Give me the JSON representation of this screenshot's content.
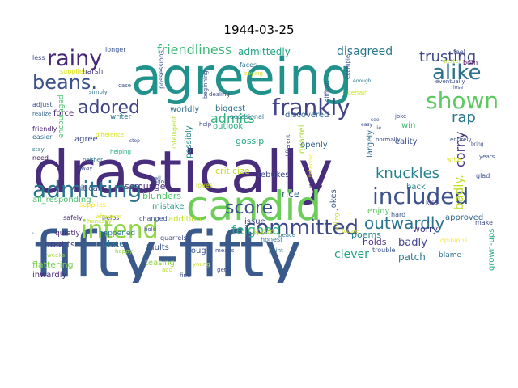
{
  "title": "1944-03-25",
  "words": [
    {
      "text": "fifty-fifty",
      "color": "#3b5a8c"
    },
    {
      "text": "drastically",
      "color": "#472d7b"
    },
    {
      "text": "agreeing",
      "color": "#21918c"
    },
    {
      "text": "candid",
      "color": "#6ccd59"
    },
    {
      "text": "included",
      "color": "#3b528b"
    },
    {
      "text": "admitting",
      "color": "#2b758e"
    },
    {
      "text": "intend",
      "color": "#90d743"
    },
    {
      "text": "committed",
      "color": "#3e4a89"
    },
    {
      "text": "frankly",
      "color": "#414487"
    },
    {
      "text": "rainy",
      "color": "#482677"
    },
    {
      "text": "shown",
      "color": "#5ec962"
    },
    {
      "text": "beans.",
      "color": "#3b528b"
    },
    {
      "text": "adored",
      "color": "#414487"
    },
    {
      "text": "alike",
      "color": "#2d708e"
    },
    {
      "text": "score",
      "color": "#3b528b"
    },
    {
      "text": "knuckles",
      "color": "#26828e"
    },
    {
      "text": "outwardly",
      "color": "#2c728e"
    },
    {
      "text": "trusting",
      "color": "#3e4989"
    },
    {
      "text": "feigned",
      "color": "#29af7f"
    },
    {
      "text": "friendliness",
      "color": "#3aba76"
    },
    {
      "text": "disagreed",
      "color": "#2a788e"
    },
    {
      "text": "admits",
      "color": "#2db27d"
    },
    {
      "text": "corny",
      "color": "#46337e"
    },
    {
      "text": "rap",
      "color": "#2a788e"
    },
    {
      "text": "badly.",
      "color": "#c0df25"
    },
    {
      "text": "admittedly",
      "color": "#20a386"
    },
    {
      "text": "gossip",
      "color": "#22a785"
    },
    {
      "text": "criticize",
      "color": "#bddf26"
    },
    {
      "text": "rebukes",
      "color": "#3e4a89"
    },
    {
      "text": "scrounge",
      "color": "#472d7b"
    },
    {
      "text": "all_responding",
      "color": "#4ac16d"
    },
    {
      "text": "approved",
      "color": "#31688e"
    },
    {
      "text": "clever",
      "color": "#20a386"
    },
    {
      "text": "poems",
      "color": "#26828e"
    },
    {
      "text": "patch",
      "color": "#2a788e"
    },
    {
      "text": "badly",
      "color": "#404588"
    },
    {
      "text": "holds",
      "color": "#46337e"
    },
    {
      "text": "worry",
      "color": "#453781"
    },
    {
      "text": "flattering",
      "color": "#7ad151"
    },
    {
      "text": "inwardly",
      "color": "#482878"
    },
    {
      "text": "doubts",
      "color": "#433e85"
    },
    {
      "text": "plate",
      "color": "#2c728e"
    },
    {
      "text": "faults",
      "color": "#3b528b"
    },
    {
      "text": "rough",
      "color": "#39568c"
    },
    {
      "text": "rice",
      "color": "#355f8d"
    },
    {
      "text": "mistake",
      "color": "#1fa088"
    },
    {
      "text": "blunders",
      "color": "#52c569"
    },
    {
      "text": "critical",
      "color": "#3e4c8a"
    },
    {
      "text": "teasing",
      "color": "#8fd744"
    },
    {
      "text": "quarrel",
      "color": "#a8db34"
    },
    {
      "text": "outlook",
      "color": "#27ad81"
    },
    {
      "text": "biggest",
      "color": "#2e6e8e"
    },
    {
      "text": "discovered",
      "color": "#33638d"
    },
    {
      "text": "openly",
      "color": "#33638d"
    },
    {
      "text": "reality",
      "color": "#3b528b"
    },
    {
      "text": "win",
      "color": "#42be71"
    },
    {
      "text": "agree",
      "color": "#3e4a89"
    },
    {
      "text": "force",
      "color": "#482374"
    },
    {
      "text": "supplies",
      "color": "#dde318"
    },
    {
      "text": "harsh",
      "color": "#453882"
    },
    {
      "text": "worldly",
      "color": "#2e6d8e"
    },
    {
      "text": "possessions",
      "color": "#3b528b"
    },
    {
      "text": "encouraged",
      "color": "#4ac16d"
    },
    {
      "text": "writer",
      "color": "#2a788e"
    },
    {
      "text": "possibly",
      "color": "#24868e"
    },
    {
      "text": "intelligent",
      "color": "#b5de2b"
    },
    {
      "text": "addition",
      "color": "#c2df23"
    },
    {
      "text": "issue",
      "color": "#3e4989"
    },
    {
      "text": "spare",
      "color": "#bddf26"
    },
    {
      "text": "enjoy",
      "color": "#5ec962"
    },
    {
      "text": "jokes",
      "color": "#38588c"
    },
    {
      "text": "back",
      "color": "#25838e"
    },
    {
      "text": "largely",
      "color": "#2e6e8e"
    },
    {
      "text": "grown-ups",
      "color": "#24aa83"
    },
    {
      "text": "supplies",
      "color": "#fde725"
    },
    {
      "text": "quietly",
      "color": "#482576"
    },
    {
      "text": "happened",
      "color": "#2a788e"
    },
    {
      "text": "quarrels",
      "color": "#3f4788"
    },
    {
      "text": "changed",
      "color": "#39558c"
    },
    {
      "text": "helps",
      "color": "#3f4889"
    },
    {
      "text": "safely",
      "color": "#472c7a"
    },
    {
      "text": "loves",
      "color": "#c8e020"
    },
    {
      "text": "honest",
      "color": "#2c728e"
    },
    {
      "text": "trouble",
      "color": "#3b528b"
    },
    {
      "text": "occasional",
      "color": "#2c728e"
    },
    {
      "text": "different",
      "color": "#3e4c8a"
    },
    {
      "text": "friendly",
      "color": "#482071"
    },
    {
      "text": "easier",
      "color": "#2f6c8e"
    },
    {
      "text": "need",
      "color": "#471063"
    },
    {
      "text": "away",
      "color": "#3d4d8a"
    },
    {
      "text": "weeks",
      "color": "#a2da37"
    },
    {
      "text": "happy",
      "color": "#8bd646"
    },
    {
      "text": "blame",
      "color": "#2d718e"
    },
    {
      "text": "opinions",
      "color": "#fde725"
    },
    {
      "text": "hard",
      "color": "#39568c"
    },
    {
      "text": "kiss",
      "color": "#443a83"
    },
    {
      "text": "glad",
      "color": "#3b528b"
    },
    {
      "text": "make",
      "color": "#3e4c8a"
    },
    {
      "text": "true",
      "color": "#482878"
    },
    {
      "text": "less",
      "color": "#3d4d8a"
    },
    {
      "text": "longer",
      "color": "#3a548c"
    },
    {
      "text": "faces",
      "color": "#2c728e"
    },
    {
      "text": "saying",
      "color": "#d2e21b"
    },
    {
      "text": "born",
      "color": "#440154"
    },
    {
      "text": "feel",
      "color": "#3e4c8a"
    },
    {
      "text": "better",
      "color": "#b8de29"
    },
    {
      "text": "eventually",
      "color": "#3b528b"
    },
    {
      "text": "simply",
      "color": "#2d708e"
    },
    {
      "text": "case",
      "color": "#3b528b"
    },
    {
      "text": "adjust",
      "color": "#3b528b"
    },
    {
      "text": "realize",
      "color": "#33638d"
    },
    {
      "text": "help",
      "color": "#3e4a89"
    },
    {
      "text": "dealing",
      "color": "#3e4c8a"
    },
    {
      "text": "joke",
      "color": "#3e4989"
    },
    {
      "text": "certain",
      "color": "#c8e020"
    },
    {
      "text": "normally",
      "color": "#3d4e8a"
    },
    {
      "text": "years",
      "color": "#3b528b"
    },
    {
      "text": "entirely",
      "color": "#3b528b"
    },
    {
      "text": "listening",
      "color": "#fde725"
    },
    {
      "text": "neither",
      "color": "#2b758e"
    },
    {
      "text": "stay",
      "color": "#2b758e"
    },
    {
      "text": "helping",
      "color": "#24aa83"
    },
    {
      "text": "tell",
      "color": "#3b528b"
    },
    {
      "text": "write",
      "color": "#d8e219"
    },
    {
      "text": "point",
      "color": "#2c728e"
    },
    {
      "text": "peace",
      "color": "#2a788e"
    },
    {
      "text": "gets",
      "color": "#3e4c8a"
    },
    {
      "text": "fine",
      "color": "#3e4989"
    },
    {
      "text": "add",
      "color": "#b5de2b"
    },
    {
      "text": "young",
      "color": "#c8e020"
    },
    {
      "text": "means",
      "color": "#3b528b"
    },
    {
      "text": "future",
      "color": "#d2e21b"
    },
    {
      "text": "ago",
      "color": "#3e4a89"
    },
    {
      "text": "whatever",
      "color": "#d8e219"
    },
    {
      "text": "hold",
      "color": "#3b528b"
    },
    {
      "text": "honestly",
      "color": "#bddf26"
    },
    {
      "text": "beginning",
      "color": "#3e4c8a"
    },
    {
      "text": "replied",
      "color": "#2d718e"
    },
    {
      "text": "difference",
      "color": "#dde318"
    },
    {
      "text": "stop",
      "color": "#3e4c8a"
    },
    {
      "text": "enough",
      "color": "#2a788e"
    },
    {
      "text": "lose",
      "color": "#3b528b"
    },
    {
      "text": "see",
      "color": "#3b528b"
    },
    {
      "text": "lie",
      "color": "#3b528b"
    },
    {
      "text": "easy",
      "color": "#3b528b"
    },
    {
      "text": "bring",
      "color": "#3e4c8a"
    },
    {
      "text": "difficult",
      "color": "#3b528b"
    },
    {
      "text": "example",
      "color": "#3b528b"
    },
    {
      "text": "willing",
      "color": "#c8e020"
    }
  ]
}
